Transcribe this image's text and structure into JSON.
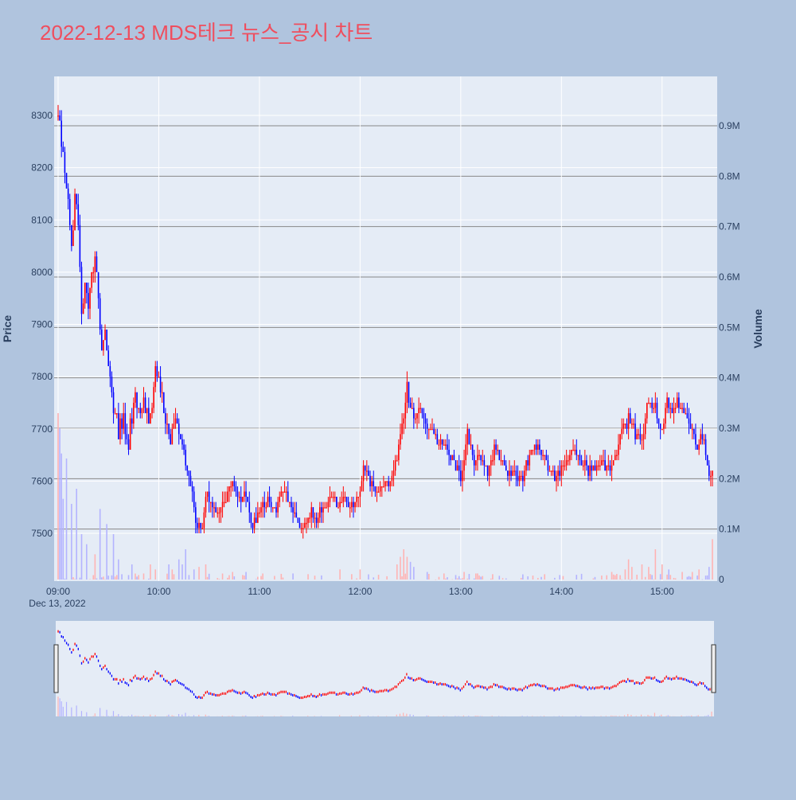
{
  "chart_data": {
    "type": "candlestick",
    "title": "2022-12-13 MDS테크 뉴스_공시 차트",
    "title_color": "#ef4e5e",
    "date_label": "Dec 13, 2022",
    "y_price": {
      "label": "Price",
      "range": [
        7410,
        8340
      ],
      "ticks": [
        7500,
        7600,
        7700,
        7800,
        7900,
        8000,
        8100,
        8200,
        8300
      ]
    },
    "y_volume": {
      "label": "Volume",
      "range": [
        0,
        1000000
      ],
      "ticks": [
        0,
        100000,
        200000,
        300000,
        400000,
        500000,
        600000,
        700000,
        800000,
        900000
      ],
      "tick_labels": [
        "0",
        "0.1M",
        "0.2M",
        "0.3M",
        "0.4M",
        "0.5M",
        "0.6M",
        "0.7M",
        "0.8M",
        "0.9M"
      ]
    },
    "x_axis": {
      "range": [
        "09:00",
        "15:30"
      ],
      "ticks": [
        "09:00",
        "10:00",
        "11:00",
        "12:00",
        "13:00",
        "14:00",
        "15:00"
      ]
    },
    "colors": {
      "up": "#ff0000",
      "down": "#0000ff",
      "volume_up": "#ffb3b3",
      "volume_down": "#b3b3ff"
    },
    "price_path": [
      [
        "09:00",
        8300
      ],
      [
        "09:02",
        8250
      ],
      [
        "09:04",
        8200
      ],
      [
        "09:06",
        8120
      ],
      [
        "09:08",
        8060
      ],
      [
        "09:10",
        8150
      ],
      [
        "09:12",
        8100
      ],
      [
        "09:14",
        7900
      ],
      [
        "09:16",
        7970
      ],
      [
        "09:18",
        7930
      ],
      [
        "09:20",
        8000
      ],
      [
        "09:22",
        8020
      ],
      [
        "09:24",
        7960
      ],
      [
        "09:26",
        7850
      ],
      [
        "09:28",
        7880
      ],
      [
        "09:30",
        7830
      ],
      [
        "09:33",
        7720
      ],
      [
        "09:36",
        7700
      ],
      [
        "09:39",
        7720
      ],
      [
        "09:42",
        7680
      ],
      [
        "09:45",
        7760
      ],
      [
        "09:48",
        7750
      ],
      [
        "09:51",
        7740
      ],
      [
        "09:55",
        7720
      ],
      [
        "09:58",
        7820
      ],
      [
        "10:01",
        7780
      ],
      [
        "10:04",
        7720
      ],
      [
        "10:07",
        7680
      ],
      [
        "10:10",
        7720
      ],
      [
        "10:13",
        7690
      ],
      [
        "10:16",
        7640
      ],
      [
        "10:19",
        7600
      ],
      [
        "10:22",
        7520
      ],
      [
        "10:25",
        7500
      ],
      [
        "10:28",
        7570
      ],
      [
        "10:32",
        7550
      ],
      [
        "10:36",
        7540
      ],
      [
        "10:40",
        7570
      ],
      [
        "10:44",
        7600
      ],
      [
        "10:48",
        7560
      ],
      [
        "10:52",
        7580
      ],
      [
        "10:55",
        7510
      ],
      [
        "10:58",
        7530
      ],
      [
        "11:02",
        7560
      ],
      [
        "11:06",
        7560
      ],
      [
        "11:10",
        7540
      ],
      [
        "11:14",
        7580
      ],
      [
        "11:18",
        7560
      ],
      [
        "11:22",
        7520
      ],
      [
        "11:26",
        7510
      ],
      [
        "11:30",
        7540
      ],
      [
        "11:34",
        7530
      ],
      [
        "11:38",
        7550
      ],
      [
        "11:42",
        7570
      ],
      [
        "11:46",
        7560
      ],
      [
        "11:50",
        7570
      ],
      [
        "11:54",
        7545
      ],
      [
        "11:58",
        7560
      ],
      [
        "12:02",
        7620
      ],
      [
        "12:06",
        7600
      ],
      [
        "12:10",
        7580
      ],
      [
        "12:14",
        7600
      ],
      [
        "12:18",
        7600
      ],
      [
        "12:22",
        7650
      ],
      [
        "12:26",
        7720
      ],
      [
        "12:28",
        7780
      ],
      [
        "12:30",
        7740
      ],
      [
        "12:33",
        7720
      ],
      [
        "12:36",
        7740
      ],
      [
        "12:40",
        7700
      ],
      [
        "12:44",
        7690
      ],
      [
        "12:48",
        7680
      ],
      [
        "12:52",
        7650
      ],
      [
        "12:56",
        7640
      ],
      [
        "13:00",
        7600
      ],
      [
        "13:04",
        7700
      ],
      [
        "13:08",
        7630
      ],
      [
        "13:12",
        7650
      ],
      [
        "13:16",
        7620
      ],
      [
        "13:20",
        7660
      ],
      [
        "13:24",
        7640
      ],
      [
        "13:28",
        7610
      ],
      [
        "13:32",
        7620
      ],
      [
        "13:36",
        7600
      ],
      [
        "13:40",
        7640
      ],
      [
        "13:44",
        7680
      ],
      [
        "13:48",
        7650
      ],
      [
        "13:52",
        7630
      ],
      [
        "13:56",
        7600
      ],
      [
        "14:00",
        7620
      ],
      [
        "14:04",
        7650
      ],
      [
        "14:08",
        7660
      ],
      [
        "14:12",
        7640
      ],
      [
        "14:16",
        7620
      ],
      [
        "14:20",
        7630
      ],
      [
        "14:24",
        7640
      ],
      [
        "14:28",
        7620
      ],
      [
        "14:32",
        7640
      ],
      [
        "14:36",
        7700
      ],
      [
        "14:40",
        7720
      ],
      [
        "14:44",
        7690
      ],
      [
        "14:48",
        7680
      ],
      [
        "14:52",
        7760
      ],
      [
        "14:56",
        7740
      ],
      [
        "15:00",
        7690
      ],
      [
        "15:03",
        7760
      ],
      [
        "15:06",
        7730
      ],
      [
        "15:09",
        7750
      ],
      [
        "15:12",
        7740
      ],
      [
        "15:15",
        7720
      ],
      [
        "15:18",
        7700
      ],
      [
        "15:21",
        7660
      ],
      [
        "15:24",
        7680
      ],
      [
        "15:27",
        7640
      ],
      [
        "15:29",
        7610
      ]
    ],
    "volume_spikes": [
      [
        "09:00",
        330000
      ],
      [
        "09:01",
        300000
      ],
      [
        "09:02",
        250000
      ],
      [
        "09:03",
        160000
      ],
      [
        "09:05",
        240000
      ],
      [
        "09:08",
        150000
      ],
      [
        "09:11",
        180000
      ],
      [
        "09:14",
        90000
      ],
      [
        "09:17",
        70000
      ],
      [
        "09:22",
        50000
      ],
      [
        "09:25",
        140000
      ],
      [
        "09:29",
        110000
      ],
      [
        "09:33",
        90000
      ],
      [
        "09:36",
        40000
      ],
      [
        "09:44",
        30000
      ],
      [
        "09:55",
        30000
      ],
      [
        "09:58",
        20000
      ],
      [
        "10:06",
        30000
      ],
      [
        "10:08",
        20000
      ],
      [
        "10:12",
        40000
      ],
      [
        "10:14",
        30000
      ],
      [
        "10:16",
        60000
      ],
      [
        "10:21",
        20000
      ],
      [
        "10:24",
        25000
      ],
      [
        "10:28",
        30000
      ],
      [
        "10:44",
        15000
      ],
      [
        "10:52",
        15000
      ],
      [
        "11:20",
        12000
      ],
      [
        "11:48",
        20000
      ],
      [
        "12:00",
        20000
      ],
      [
        "12:22",
        30000
      ],
      [
        "12:24",
        45000
      ],
      [
        "12:26",
        60000
      ],
      [
        "12:28",
        45000
      ],
      [
        "12:30",
        35000
      ],
      [
        "12:32",
        25000
      ],
      [
        "12:40",
        15000
      ],
      [
        "12:50",
        12000
      ],
      [
        "13:02",
        15000
      ],
      [
        "13:10",
        12000
      ],
      [
        "14:30",
        15000
      ],
      [
        "14:38",
        20000
      ],
      [
        "14:40",
        40000
      ],
      [
        "14:42",
        25000
      ],
      [
        "14:48",
        30000
      ],
      [
        "14:52",
        25000
      ],
      [
        "14:56",
        60000
      ],
      [
        "15:00",
        30000
      ],
      [
        "15:04",
        20000
      ],
      [
        "15:12",
        15000
      ],
      [
        "15:18",
        15000
      ],
      [
        "15:22",
        20000
      ],
      [
        "15:28",
        25000
      ],
      [
        "15:30",
        80000
      ]
    ]
  }
}
